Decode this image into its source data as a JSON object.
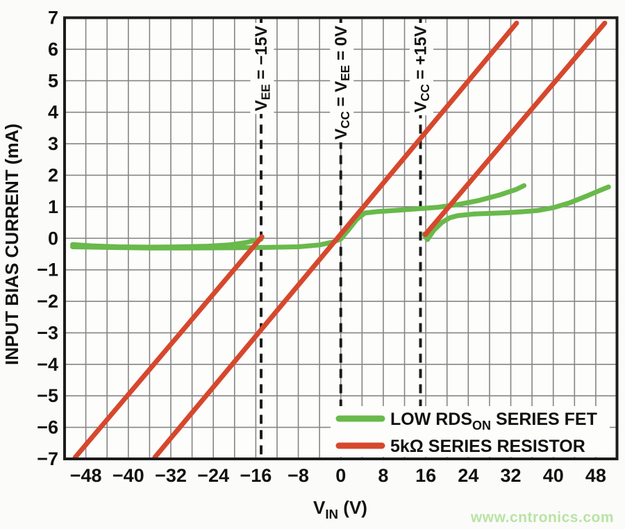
{
  "watermark": "www.cntronics.com",
  "colors": {
    "green": "#69b94b",
    "red": "#d6482d",
    "grid": "#858585",
    "axis": "#1c1c1c",
    "text": "#111111",
    "plot_bg": "#fdfdfc",
    "legend_bg": "#fdfdfc",
    "watermark": "#b9e3a4"
  },
  "chart_data": {
    "type": "line",
    "title": "",
    "ylabel": "INPUT BIAS CURRENT (mA)",
    "xlabel_parts": [
      {
        "t": "V"
      },
      {
        "s": "IN"
      },
      {
        "t": " (V)"
      }
    ],
    "xlim": [
      -52,
      52
    ],
    "ylim": [
      -7,
      7
    ],
    "x_grid_step": 4,
    "y_grid_step": 1,
    "grid": true,
    "x_tick_values": [
      -48,
      -40,
      -32,
      -24,
      -16,
      -8,
      0,
      8,
      16,
      24,
      32,
      40,
      48
    ],
    "x_tick_labels": [
      "−48",
      "−40",
      "−32",
      "−24",
      "−16",
      "−8",
      "0",
      "8",
      "16",
      "24",
      "32",
      "40",
      "48"
    ],
    "y_tick_values": [
      7,
      6,
      5,
      4,
      3,
      2,
      1,
      0,
      -1,
      -2,
      -3,
      -4,
      -5,
      -6,
      -7
    ],
    "y_tick_labels": [
      "7",
      "6",
      "5",
      "4",
      "3",
      "2",
      "1",
      "0",
      "−1",
      "−2",
      "−3",
      "−4",
      "−5",
      "−6",
      "−7"
    ],
    "vlines": [
      {
        "x": -15,
        "label_parts": [
          {
            "t": "V"
          },
          {
            "s": "EE"
          },
          {
            "t": " = −15V"
          }
        ]
      },
      {
        "x": 0,
        "label_parts": [
          {
            "t": "V"
          },
          {
            "s": "CC"
          },
          {
            "t": " = V"
          },
          {
            "s": "EE"
          },
          {
            "t": " = 0V"
          }
        ]
      },
      {
        "x": 15,
        "label_parts": [
          {
            "t": "V"
          },
          {
            "s": "CC"
          },
          {
            "t": " = +15V"
          }
        ]
      }
    ],
    "legend_position": "inside-bottom-right",
    "series": [
      {
        "id": "fet",
        "name_parts": [
          {
            "t": "LOW RDS"
          },
          {
            "s": "ON"
          },
          {
            "t": " SERIES FET"
          }
        ],
        "color_key": "green",
        "segments": [
          [
            [
              -50.5,
              -0.2
            ],
            [
              -47,
              -0.24
            ],
            [
              -42,
              -0.27
            ],
            [
              -36,
              -0.28
            ],
            [
              -30,
              -0.27
            ],
            [
              -25,
              -0.25
            ],
            [
              -21,
              -0.21
            ],
            [
              -18,
              -0.14
            ],
            [
              -16.2,
              -0.07
            ],
            [
              -15,
              -0.03
            ]
          ],
          [
            [
              -50.5,
              -0.27
            ],
            [
              -44,
              -0.29
            ],
            [
              -36,
              -0.31
            ],
            [
              -28,
              -0.31
            ],
            [
              -20,
              -0.3
            ],
            [
              -14,
              -0.29
            ],
            [
              -8,
              -0.27
            ],
            [
              -4,
              -0.21
            ],
            [
              -1.5,
              -0.12
            ],
            [
              0,
              -0.02
            ],
            [
              1.5,
              0.28
            ],
            [
              3,
              0.6
            ],
            [
              4.5,
              0.8
            ],
            [
              7,
              0.85
            ],
            [
              10,
              0.88
            ],
            [
              14,
              0.93
            ],
            [
              18,
              0.98
            ],
            [
              22,
              1.07
            ],
            [
              26,
              1.2
            ],
            [
              30,
              1.38
            ],
            [
              33,
              1.55
            ],
            [
              34.5,
              1.67
            ]
          ],
          [
            [
              15.7,
              0.13
            ],
            [
              16.3,
              -0.04
            ],
            [
              17.5,
              0.25
            ],
            [
              19,
              0.5
            ],
            [
              20.5,
              0.65
            ],
            [
              22,
              0.72
            ],
            [
              25,
              0.77
            ],
            [
              28,
              0.79
            ],
            [
              31,
              0.81
            ],
            [
              34,
              0.84
            ],
            [
              37,
              0.88
            ],
            [
              40,
              0.97
            ],
            [
              43,
              1.12
            ],
            [
              46,
              1.32
            ],
            [
              48.5,
              1.5
            ],
            [
              50.4,
              1.63
            ]
          ]
        ]
      },
      {
        "id": "resistor",
        "name_parts": [
          {
            "t": "5kΩ SERIES RESISTOR"
          }
        ],
        "color_key": "red",
        "segments": [
          [
            [
              -50.0,
              -6.95
            ],
            [
              -14.85,
              0.05
            ]
          ],
          [
            [
              -35.0,
              -6.95
            ],
            [
              33.1,
              6.83
            ]
          ],
          [
            [
              15.9,
              0.12
            ],
            [
              49.7,
              6.83
            ]
          ]
        ]
      }
    ]
  }
}
